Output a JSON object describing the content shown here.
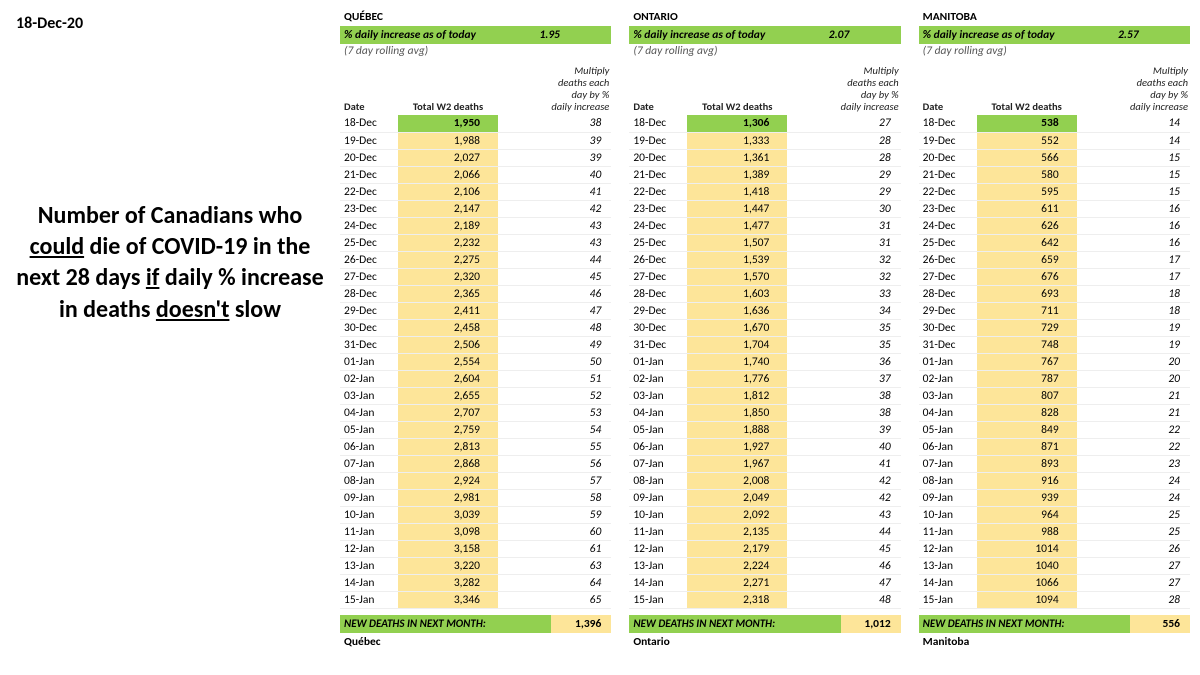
{
  "report_date": "18-Dec-20",
  "headline_parts": [
    "Number of Canadians who ",
    "could",
    " die of COVID-19 in the next 28 days ",
    "if",
    " daily % increase in deaths ",
    "doesn't",
    " slow"
  ],
  "labels": {
    "pct_increase": "% daily increase as of today",
    "rolling": "(7 day rolling avg)",
    "multiply_note": "Multiply deaths each day by % daily increase",
    "date": "Date",
    "total_w2": "Total W2 deaths",
    "new_deaths": "NEW DEATHS IN NEXT MONTH:"
  },
  "colors": {
    "green": "#92d050",
    "yellow": "#fde599",
    "white": "#ffffff"
  },
  "provinces": [
    {
      "name": "QUÉBEC",
      "display_name": "Québec",
      "pct_increase": "1.95",
      "new_deaths_total": "1,396",
      "rows": [
        {
          "date": "18-Dec",
          "total": "1,950",
          "mult": "38"
        },
        {
          "date": "19-Dec",
          "total": "1,988",
          "mult": "39"
        },
        {
          "date": "20-Dec",
          "total": "2,027",
          "mult": "39"
        },
        {
          "date": "21-Dec",
          "total": "2,066",
          "mult": "40"
        },
        {
          "date": "22-Dec",
          "total": "2,106",
          "mult": "41"
        },
        {
          "date": "23-Dec",
          "total": "2,147",
          "mult": "42"
        },
        {
          "date": "24-Dec",
          "total": "2,189",
          "mult": "43"
        },
        {
          "date": "25-Dec",
          "total": "2,232",
          "mult": "43"
        },
        {
          "date": "26-Dec",
          "total": "2,275",
          "mult": "44"
        },
        {
          "date": "27-Dec",
          "total": "2,320",
          "mult": "45"
        },
        {
          "date": "28-Dec",
          "total": "2,365",
          "mult": "46"
        },
        {
          "date": "29-Dec",
          "total": "2,411",
          "mult": "47"
        },
        {
          "date": "30-Dec",
          "total": "2,458",
          "mult": "48"
        },
        {
          "date": "31-Dec",
          "total": "2,506",
          "mult": "49"
        },
        {
          "date": "01-Jan",
          "total": "2,554",
          "mult": "50"
        },
        {
          "date": "02-Jan",
          "total": "2,604",
          "mult": "51"
        },
        {
          "date": "03-Jan",
          "total": "2,655",
          "mult": "52"
        },
        {
          "date": "04-Jan",
          "total": "2,707",
          "mult": "53"
        },
        {
          "date": "05-Jan",
          "total": "2,759",
          "mult": "54"
        },
        {
          "date": "06-Jan",
          "total": "2,813",
          "mult": "55"
        },
        {
          "date": "07-Jan",
          "total": "2,868",
          "mult": "56"
        },
        {
          "date": "08-Jan",
          "total": "2,924",
          "mult": "57"
        },
        {
          "date": "09-Jan",
          "total": "2,981",
          "mult": "58"
        },
        {
          "date": "10-Jan",
          "total": "3,039",
          "mult": "59"
        },
        {
          "date": "11-Jan",
          "total": "3,098",
          "mult": "60"
        },
        {
          "date": "12-Jan",
          "total": "3,158",
          "mult": "61"
        },
        {
          "date": "13-Jan",
          "total": "3,220",
          "mult": "63"
        },
        {
          "date": "14-Jan",
          "total": "3,282",
          "mult": "64"
        },
        {
          "date": "15-Jan",
          "total": "3,346",
          "mult": "65"
        }
      ]
    },
    {
      "name": "ONTARIO",
      "display_name": "Ontario",
      "pct_increase": "2.07",
      "new_deaths_total": "1,012",
      "rows": [
        {
          "date": "18-Dec",
          "total": "1,306",
          "mult": "27"
        },
        {
          "date": "19-Dec",
          "total": "1,333",
          "mult": "28"
        },
        {
          "date": "20-Dec",
          "total": "1,361",
          "mult": "28"
        },
        {
          "date": "21-Dec",
          "total": "1,389",
          "mult": "29"
        },
        {
          "date": "22-Dec",
          "total": "1,418",
          "mult": "29"
        },
        {
          "date": "23-Dec",
          "total": "1,447",
          "mult": "30"
        },
        {
          "date": "24-Dec",
          "total": "1,477",
          "mult": "31"
        },
        {
          "date": "25-Dec",
          "total": "1,507",
          "mult": "31"
        },
        {
          "date": "26-Dec",
          "total": "1,539",
          "mult": "32"
        },
        {
          "date": "27-Dec",
          "total": "1,570",
          "mult": "32"
        },
        {
          "date": "28-Dec",
          "total": "1,603",
          "mult": "33"
        },
        {
          "date": "29-Dec",
          "total": "1,636",
          "mult": "34"
        },
        {
          "date": "30-Dec",
          "total": "1,670",
          "mult": "35"
        },
        {
          "date": "31-Dec",
          "total": "1,704",
          "mult": "35"
        },
        {
          "date": "01-Jan",
          "total": "1,740",
          "mult": "36"
        },
        {
          "date": "02-Jan",
          "total": "1,776",
          "mult": "37"
        },
        {
          "date": "03-Jan",
          "total": "1,812",
          "mult": "38"
        },
        {
          "date": "04-Jan",
          "total": "1,850",
          "mult": "38"
        },
        {
          "date": "05-Jan",
          "total": "1,888",
          "mult": "39"
        },
        {
          "date": "06-Jan",
          "total": "1,927",
          "mult": "40"
        },
        {
          "date": "07-Jan",
          "total": "1,967",
          "mult": "41"
        },
        {
          "date": "08-Jan",
          "total": "2,008",
          "mult": "42"
        },
        {
          "date": "09-Jan",
          "total": "2,049",
          "mult": "42"
        },
        {
          "date": "10-Jan",
          "total": "2,092",
          "mult": "43"
        },
        {
          "date": "11-Jan",
          "total": "2,135",
          "mult": "44"
        },
        {
          "date": "12-Jan",
          "total": "2,179",
          "mult": "45"
        },
        {
          "date": "13-Jan",
          "total": "2,224",
          "mult": "46"
        },
        {
          "date": "14-Jan",
          "total": "2,271",
          "mult": "47"
        },
        {
          "date": "15-Jan",
          "total": "2,318",
          "mult": "48"
        }
      ]
    },
    {
      "name": "MANITOBA",
      "display_name": "Manitoba",
      "pct_increase": "2.57",
      "new_deaths_total": "556",
      "rows": [
        {
          "date": "18-Dec",
          "total": "538",
          "mult": "14"
        },
        {
          "date": "19-Dec",
          "total": "552",
          "mult": "14"
        },
        {
          "date": "20-Dec",
          "total": "566",
          "mult": "15"
        },
        {
          "date": "21-Dec",
          "total": "580",
          "mult": "15"
        },
        {
          "date": "22-Dec",
          "total": "595",
          "mult": "15"
        },
        {
          "date": "23-Dec",
          "total": "611",
          "mult": "16"
        },
        {
          "date": "24-Dec",
          "total": "626",
          "mult": "16"
        },
        {
          "date": "25-Dec",
          "total": "642",
          "mult": "16"
        },
        {
          "date": "26-Dec",
          "total": "659",
          "mult": "17"
        },
        {
          "date": "27-Dec",
          "total": "676",
          "mult": "17"
        },
        {
          "date": "28-Dec",
          "total": "693",
          "mult": "18"
        },
        {
          "date": "29-Dec",
          "total": "711",
          "mult": "18"
        },
        {
          "date": "30-Dec",
          "total": "729",
          "mult": "19"
        },
        {
          "date": "31-Dec",
          "total": "748",
          "mult": "19"
        },
        {
          "date": "01-Jan",
          "total": "767",
          "mult": "20"
        },
        {
          "date": "02-Jan",
          "total": "787",
          "mult": "20"
        },
        {
          "date": "03-Jan",
          "total": "807",
          "mult": "21"
        },
        {
          "date": "04-Jan",
          "total": "828",
          "mult": "21"
        },
        {
          "date": "05-Jan",
          "total": "849",
          "mult": "22"
        },
        {
          "date": "06-Jan",
          "total": "871",
          "mult": "22"
        },
        {
          "date": "07-Jan",
          "total": "893",
          "mult": "23"
        },
        {
          "date": "08-Jan",
          "total": "916",
          "mult": "24"
        },
        {
          "date": "09-Jan",
          "total": "939",
          "mult": "24"
        },
        {
          "date": "10-Jan",
          "total": "964",
          "mult": "25"
        },
        {
          "date": "11-Jan",
          "total": "988",
          "mult": "25"
        },
        {
          "date": "12-Jan",
          "total": "1014",
          "mult": "26"
        },
        {
          "date": "13-Jan",
          "total": "1040",
          "mult": "27"
        },
        {
          "date": "14-Jan",
          "total": "1066",
          "mult": "27"
        },
        {
          "date": "15-Jan",
          "total": "1094",
          "mult": "28"
        }
      ]
    }
  ]
}
